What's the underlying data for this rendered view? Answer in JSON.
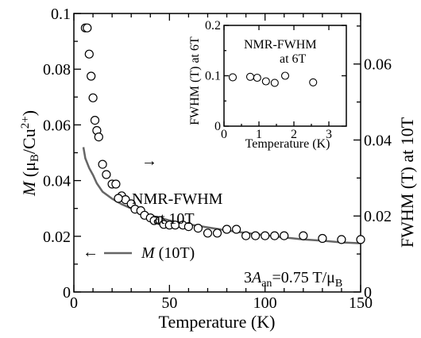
{
  "chart_data": [
    {
      "type": "scatter",
      "title": "",
      "xlabel": "Temperature (K)",
      "ylabel_left": "M (μB/Cu2+)",
      "ylabel_right": "FWHM (T) at 10T",
      "xlim": [
        0,
        150
      ],
      "ylim_left": [
        0,
        0.1
      ],
      "ylim_right": [
        0,
        0.0733
      ],
      "x_ticks": [
        "0",
        "50",
        "100",
        "150"
      ],
      "y_ticks_left": [
        "0",
        "0.02",
        "0.04",
        "0.06",
        "0.08",
        "0.1"
      ],
      "y_ticks_right": [
        "0",
        "0.02",
        "0.04",
        "0.06"
      ],
      "series": [
        {
          "name": "M (10T)",
          "style": "line",
          "color": "#666666",
          "axis": "left",
          "x": [
            5,
            6,
            8,
            10,
            12,
            15,
            20,
            25,
            30,
            35,
            40,
            50,
            60,
            70,
            80,
            90,
            100,
            110,
            120,
            130,
            140,
            150
          ],
          "y": [
            0.052,
            0.048,
            0.0445,
            0.042,
            0.039,
            0.036,
            0.0335,
            0.0315,
            0.03,
            0.0285,
            0.0275,
            0.0257,
            0.0243,
            0.0232,
            0.0221,
            0.0212,
            0.0204,
            0.0196,
            0.0189,
            0.0184,
            0.0178,
            0.0175
          ]
        },
        {
          "name": "NMR-FWHM at 10T",
          "style": "open-circles",
          "axis": "right",
          "x": [
            6,
            7,
            8,
            9,
            10,
            11,
            12,
            13,
            15,
            17,
            20,
            22,
            25,
            27,
            30,
            32,
            35,
            37,
            40,
            42,
            45,
            47,
            50,
            53,
            57,
            60,
            65,
            70,
            75,
            80,
            85,
            90,
            95,
            100,
            105,
            110,
            120,
            130,
            140,
            150
          ],
          "y": [
            0.0695,
            0.0695,
            0.0626,
            0.0568,
            0.0511,
            0.0452,
            0.0425,
            0.0408,
            0.0336,
            0.0309,
            0.0284,
            0.0284,
            0.0253,
            0.0243,
            0.0232,
            0.0218,
            0.0214,
            0.0202,
            0.0195,
            0.0188,
            0.0188,
            0.0178,
            0.0176,
            0.0176,
            0.0176,
            0.0172,
            0.0168,
            0.0155,
            0.0155,
            0.0165,
            0.0165,
            0.0148,
            0.0148,
            0.0148,
            0.0148,
            0.0148,
            0.0148,
            0.0141,
            0.0138,
            0.0138
          ]
        }
      ],
      "annotations": {
        "fwhm_arrow": "→",
        "fwhm_line1": "NMR-FWHM",
        "fwhm_line2": "at 10T",
        "m_arrow": "←",
        "m_label": "M (10T)",
        "param": "3A_an=0.75 T/μB"
      }
    },
    {
      "type": "scatter",
      "title": "NMR-FWHM at 6T",
      "xlabel": "Temperature (K)",
      "ylabel": "FWHM (T) at 6T",
      "xlim": [
        0,
        3.5
      ],
      "ylim": [
        0,
        0.2
      ],
      "x_ticks": [
        "0",
        "1",
        "2",
        "3"
      ],
      "y_ticks": [
        "0",
        "0.1",
        "0.2"
      ],
      "series": [
        {
          "name": "NMR-FWHM at 6T",
          "style": "open-circles",
          "x": [
            0.25,
            0.75,
            0.95,
            1.2,
            1.45,
            1.75,
            2.55
          ],
          "y": [
            0.097,
            0.098,
            0.096,
            0.089,
            0.086,
            0.1,
            0.087
          ]
        }
      ]
    }
  ]
}
